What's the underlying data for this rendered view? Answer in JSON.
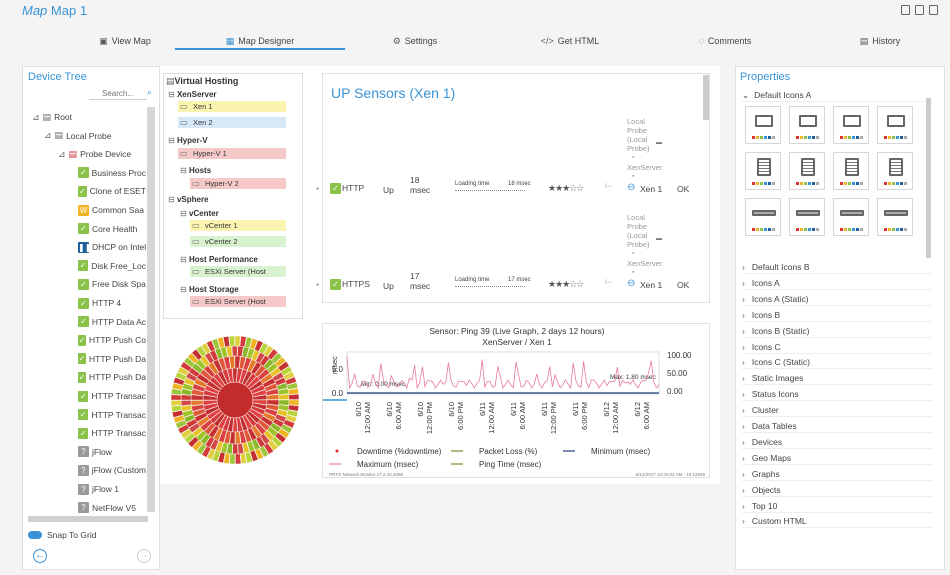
{
  "titlebar": {
    "prefix": "Map",
    "title": "Map 1"
  },
  "tabs": [
    {
      "label": "View Map",
      "icon": "image-icon"
    },
    {
      "label": "Map Designer",
      "icon": "designer-icon"
    },
    {
      "label": "Settings",
      "icon": "gear-icon"
    },
    {
      "label": "Get HTML",
      "icon": "code-icon"
    },
    {
      "label": "Comments",
      "icon": "comment-icon"
    },
    {
      "label": "History",
      "icon": "history-icon"
    }
  ],
  "device_tree": {
    "title": "Device Tree",
    "search_placeholder": "Search...",
    "nodes": [
      {
        "label": "Root"
      },
      {
        "label": "Local Probe"
      },
      {
        "label": "Probe Device"
      },
      {
        "label": "Business Proc"
      },
      {
        "label": "Clone of ESET"
      },
      {
        "label": "Common Saa"
      },
      {
        "label": "Core Health"
      },
      {
        "label": "DHCP on Intel"
      },
      {
        "label": "Disk Free_Loc"
      },
      {
        "label": "Free Disk Spa"
      },
      {
        "label": "HTTP 4"
      },
      {
        "label": "HTTP Data Ac"
      },
      {
        "label": "HTTP Push Co"
      },
      {
        "label": "HTTP Push Da"
      },
      {
        "label": "HTTP Push Da"
      },
      {
        "label": "HTTP Transac"
      },
      {
        "label": "HTTP Transac"
      },
      {
        "label": "HTTP Transac"
      },
      {
        "label": "jFlow"
      },
      {
        "label": "jFlow (Custom"
      },
      {
        "label": "jFlow 1"
      },
      {
        "label": "NetFlow V5"
      }
    ],
    "snap_label": "Snap To Grid"
  },
  "hosting": {
    "title": "Virtual Hosting",
    "groups": [
      {
        "label": "XenServer",
        "devices": [
          "Xen 1",
          "Xen 2"
        ]
      },
      {
        "label": "Hyper-V",
        "devices": [
          "Hyper-V 1"
        ]
      },
      {
        "label": "Hosts",
        "devices": [
          "Hyper-V 2"
        ]
      },
      {
        "label": "vSphere",
        "devices": []
      },
      {
        "label": "vCenter",
        "devices": [
          "vCenter 1",
          "vCenter 2"
        ]
      },
      {
        "label": "Host Performance",
        "devices": [
          "ESXi Server (Host"
        ]
      },
      {
        "label": "Host Storage",
        "devices": [
          "ESXi Server (Host"
        ]
      }
    ]
  },
  "sensors": {
    "title": "UP Sensors (Xen 1)",
    "rows": [
      {
        "name": "HTTP",
        "status": "Up",
        "value": "18",
        "unit": "msec",
        "mini_label": "Loading time",
        "mini_value": "18 msec",
        "location": "Local Probe (Local Probe)",
        "device": "Xen 1",
        "state": "OK"
      },
      {
        "name": "HTTPS",
        "status": "Up",
        "value": "17",
        "unit": "msec",
        "mini_label": "Loading time",
        "mini_value": "17 msec",
        "location": "Local Probe (Local Probe)",
        "device": "Xen 1",
        "state": "OK"
      }
    ],
    "location_extra": "XenServer"
  },
  "graph": {
    "title": "Sensor: Ping 39 (Live Graph, 2 days 12 hours)",
    "subtitle": "XenServer / Xen 1",
    "y_label": "msec",
    "min_text": "Min: 0.00 msec",
    "max_text": "Max: 1.80 msec",
    "y_ticks": [
      "5.0",
      "0.0"
    ],
    "y2_ticks": [
      "100.00",
      "50.00",
      "0.00"
    ],
    "x_ticks": [
      "6/10\n12:00 AM",
      "6/10\n6:00 AM",
      "6/10\n12:00 PM",
      "6/10\n6:00 PM",
      "6/11\n12:00 AM",
      "6/11\n6:00 AM",
      "6/11\n12:00 PM",
      "6/11\n6:00 PM",
      "6/12\n12:00 AM",
      "6/12\n6:00 AM"
    ],
    "legend": [
      {
        "label": "Downtime (%downtime)",
        "color": "#e03030"
      },
      {
        "label": "Packet Loss (%)",
        "color": "#7a8a30"
      },
      {
        "label": "Minimum (msec)",
        "color": "#1f3f7a"
      },
      {
        "label": "Maximum (msec)",
        "color": "#e87aa0"
      },
      {
        "label": "Ping Time (msec)",
        "color": "#7a8a30"
      }
    ],
    "footer_left": "PRTG Network Monitor 17.2.32.2066",
    "footer_right": "6/12/2017 10:34:03 AM - 10:12829"
  },
  "properties": {
    "title": "Properties",
    "open_section": "Default Icons A",
    "sections": [
      "Default Icons B",
      "Icons A",
      "Icons A (Static)",
      "Icons B",
      "Icons B (Static)",
      "Icons C",
      "Icons C (Static)",
      "Static Images",
      "Status Icons",
      "Cluster",
      "Data Tables",
      "Devices",
      "Geo Maps",
      "Graphs",
      "Objects",
      "Top 10",
      "Custom HTML"
    ]
  },
  "colors": {
    "accent": "#3a93d6",
    "ok": "#8bc34a",
    "warn": "#f0b323",
    "error": "#d33"
  }
}
